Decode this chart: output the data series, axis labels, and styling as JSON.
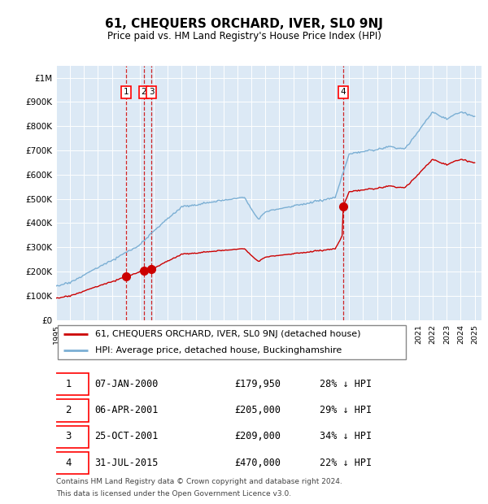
{
  "title": "61, CHEQUERS ORCHARD, IVER, SL0 9NJ",
  "subtitle": "Price paid vs. HM Land Registry's House Price Index (HPI)",
  "legend_line1": "61, CHEQUERS ORCHARD, IVER, SL0 9NJ (detached house)",
  "legend_line2": "HPI: Average price, detached house, Buckinghamshire",
  "footer1": "Contains HM Land Registry data © Crown copyright and database right 2024.",
  "footer2": "This data is licensed under the Open Government Licence v3.0.",
  "transactions": [
    {
      "num": 1,
      "date": "07-JAN-2000",
      "price": 179950,
      "pct": "28%",
      "year": 2000.03
    },
    {
      "num": 2,
      "date": "06-APR-2001",
      "price": 205000,
      "pct": "29%",
      "year": 2001.27
    },
    {
      "num": 3,
      "date": "25-OCT-2001",
      "price": 209000,
      "pct": "34%",
      "year": 2001.82
    },
    {
      "num": 4,
      "date": "31-JUL-2015",
      "price": 470000,
      "pct": "22%",
      "year": 2015.58
    }
  ],
  "hpi_color": "#7bafd4",
  "price_color": "#cc0000",
  "dashed_color": "#cc0000",
  "background_color": "#dce9f5",
  "ylim_max": 1050000,
  "xlim_start": 1995.0,
  "xlim_end": 2025.5
}
